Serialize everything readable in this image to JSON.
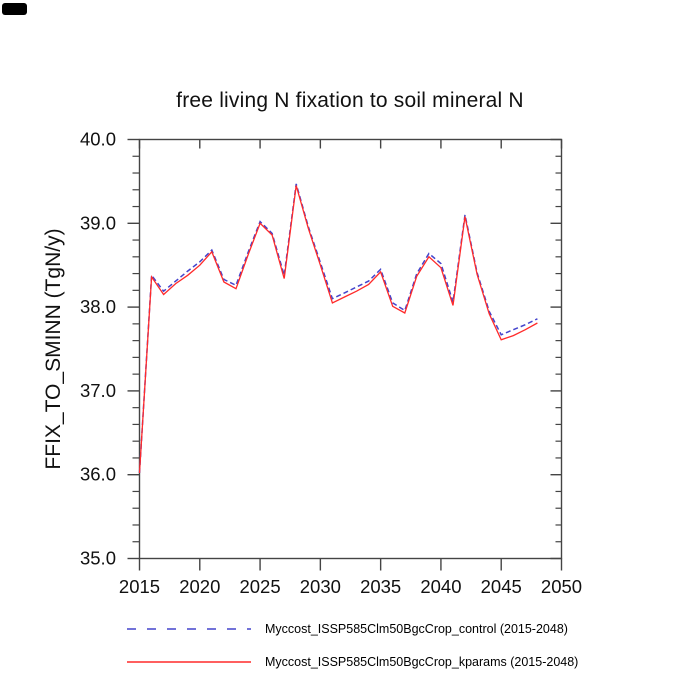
{
  "chart_data": {
    "type": "line",
    "title": "free living N fixation to soil mineral N",
    "ylabel": "FFIX_TO_SMINN  (TgN/y)",
    "xlabel": "",
    "xlim": [
      2015,
      2050
    ],
    "ylim": [
      35.0,
      40.0
    ],
    "x_ticks": [
      2015,
      2020,
      2025,
      2030,
      2035,
      2040,
      2045,
      2050
    ],
    "x_tick_labels": [
      "2015",
      "2020",
      "2025",
      "2030",
      "2035",
      "2040",
      "2045",
      "2050"
    ],
    "y_ticks": [
      35.0,
      36.0,
      37.0,
      38.0,
      39.0,
      40.0
    ],
    "y_tick_labels": [
      "35.0",
      "36.0",
      "37.0",
      "38.0",
      "39.0",
      "40.0"
    ],
    "y_minor_step": 0.2,
    "grid": false,
    "legend_position": "bottom",
    "axis_color": "#444444",
    "x": [
      2015,
      2016,
      2017,
      2018,
      2019,
      2020,
      2021,
      2022,
      2023,
      2024,
      2025,
      2026,
      2027,
      2028,
      2029,
      2030,
      2031,
      2032,
      2033,
      2034,
      2035,
      2036,
      2037,
      2038,
      2039,
      2040,
      2041,
      2042,
      2043,
      2044,
      2045,
      2046,
      2047,
      2048
    ],
    "series": [
      {
        "name": "Myccost_ISSP585Clm50BgcCrop_control (2015-2048)",
        "color": "#4444cc",
        "style": "dashed",
        "values": [
          36.02,
          38.38,
          38.19,
          38.31,
          38.43,
          38.54,
          38.68,
          38.33,
          38.26,
          38.65,
          39.02,
          38.88,
          38.38,
          39.47,
          38.96,
          38.53,
          38.1,
          38.17,
          38.24,
          38.31,
          38.45,
          38.05,
          37.96,
          38.4,
          38.64,
          38.52,
          38.06,
          39.1,
          38.41,
          37.95,
          37.67,
          37.73,
          37.79,
          37.86
        ]
      },
      {
        "name": "Myccost_ISSP585Clm50BgcCrop_kparams (2015-2048)",
        "color": "#ff2a2a",
        "style": "solid",
        "values": [
          36.02,
          38.36,
          38.15,
          38.28,
          38.38,
          38.5,
          38.66,
          38.3,
          38.22,
          38.62,
          39.0,
          38.86,
          38.34,
          39.45,
          38.94,
          38.5,
          38.05,
          38.12,
          38.19,
          38.27,
          38.42,
          38.01,
          37.93,
          38.37,
          38.6,
          38.47,
          38.02,
          39.08,
          38.39,
          37.92,
          37.61,
          37.66,
          37.73,
          37.81
        ]
      }
    ]
  }
}
